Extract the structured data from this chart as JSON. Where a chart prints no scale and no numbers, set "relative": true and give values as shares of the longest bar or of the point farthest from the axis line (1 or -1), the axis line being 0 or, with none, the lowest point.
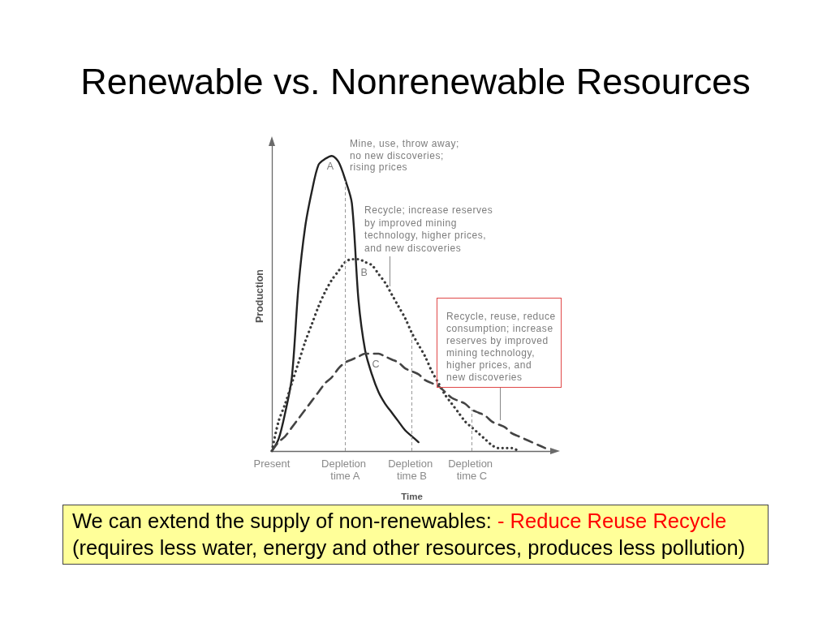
{
  "chart_data": {
    "type": "line",
    "title": "Renewable vs. Nonrenewable Resources",
    "xlabel": "Time",
    "ylabel": "Production",
    "relative": true,
    "tick_labels": "x",
    "categories": [
      "Present",
      null,
      null,
      null,
      null,
      null,
      null,
      null,
      null,
      null,
      null,
      "Depletion time A",
      null,
      null,
      null,
      null,
      null,
      null,
      null,
      null,
      null,
      "Depletion time B",
      null,
      null,
      null,
      null,
      null,
      null,
      null,
      null,
      "Depletion time C",
      null,
      null,
      null,
      null,
      null,
      null,
      null,
      null,
      null,
      null,
      null,
      null
    ],
    "series": [
      {
        "name": "A",
        "color": "#222222",
        "line_style": "solid",
        "values": [
          0,
          0.04,
          0.13,
          0.25,
          0.56,
          0.76,
          0.88,
          0.97,
          0.99,
          1,
          0.98,
          0.92,
          0.84,
          0.51,
          0.34,
          0.26,
          0.2,
          0.16,
          0.13,
          0.1,
          0.07,
          0.05,
          0.03,
          null,
          null,
          null,
          null,
          null,
          null,
          null,
          null,
          null,
          null,
          null,
          null,
          null,
          null,
          null,
          null,
          null,
          null,
          null,
          null
        ]
      },
      {
        "name": "B",
        "color": "#3a3a3a",
        "line_style": "dotted",
        "values": [
          0,
          0.1,
          0.16,
          0.23,
          0.3,
          0.37,
          0.43,
          0.49,
          0.54,
          0.58,
          0.61,
          0.64,
          0.65,
          0.65,
          0.64,
          0.63,
          0.6,
          0.57,
          0.53,
          0.49,
          0.45,
          0.4,
          0.36,
          0.32,
          0.27,
          0.23,
          0.19,
          0.16,
          0.13,
          0.1,
          0.08,
          0.06,
          0.04,
          0.02,
          0.01,
          0.01,
          0.01,
          0,
          null,
          null,
          null,
          null,
          null
        ]
      },
      {
        "name": "C",
        "color": "#444444",
        "line_style": "dashed",
        "values": [
          0,
          0.03,
          0.05,
          0.08,
          0.11,
          0.14,
          0.17,
          0.2,
          0.23,
          0.25,
          0.28,
          0.3,
          0.31,
          0.32,
          0.33,
          0.33,
          0.33,
          0.32,
          0.31,
          0.3,
          0.28,
          0.27,
          0.26,
          0.24,
          0.23,
          0.22,
          0.2,
          0.18,
          0.17,
          0.16,
          0.14,
          0.13,
          0.12,
          0.1,
          0.09,
          0.08,
          0.06,
          0.05,
          0.04,
          0.03,
          0.02,
          0.01,
          null
        ]
      }
    ],
    "ref_lines": [
      {
        "axis": "x",
        "value": "Depletion time A",
        "color": "#999999",
        "line_style": "dashed"
      },
      {
        "axis": "x",
        "value": "Depletion time B",
        "color": "#999999",
        "line_style": "dashed"
      },
      {
        "axis": "x",
        "value": "Depletion time C",
        "color": "#999999",
        "line_style": "dashed"
      }
    ],
    "annotations": [
      "Mine, use, throw away;\nno new discoveries;\nrising prices",
      "Recycle; increase reserves\nby improved mining\ntechnology, higher prices,\nand new discoveries",
      "Recycle, reuse, reduce\nconsumption; increase\nreserves by improved\nmining technology,\nhigher prices, and\nnew discoveries",
      "We can extend the supply of non-renewables:",
      "- Reduce Reuse Recycle",
      "(requires less water, energy and other resources, produces less pollution)"
    ]
  }
}
